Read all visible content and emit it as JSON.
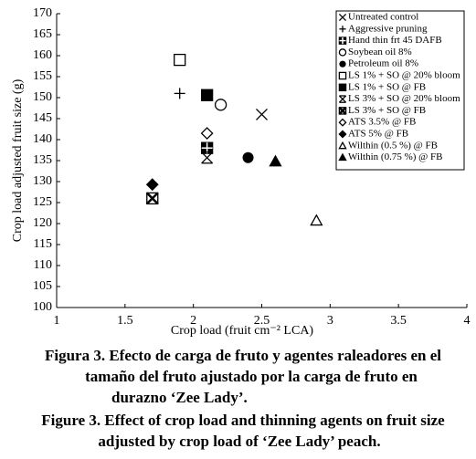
{
  "chart_data": {
    "type": "scatter",
    "xlabel": "Crop load (fruit cm⁻² LCA)",
    "ylabel": "Crop load adjusted fruit size (g)",
    "xlim": [
      1,
      4
    ],
    "xticks": [
      1,
      1.5,
      2,
      2.5,
      3,
      3.5,
      4
    ],
    "ylim": [
      100,
      170
    ],
    "yticks": [
      100,
      105,
      110,
      115,
      120,
      125,
      130,
      135,
      140,
      145,
      150,
      155,
      160,
      165,
      170
    ],
    "grid": false,
    "legend": "upper right",
    "color": "#000000",
    "series": [
      {
        "name": "Untreated control",
        "marker": "x",
        "x": [
          2.5
        ],
        "values": [
          146
        ]
      },
      {
        "name": "Aggressive pruning",
        "marker": "plus",
        "x": [
          1.9
        ],
        "values": [
          151
        ]
      },
      {
        "name": "Hand thin frt 45 DAFB",
        "marker": "square-plus",
        "x": [
          2.1
        ],
        "values": [
          138
        ]
      },
      {
        "name": "Soybean oil 8%",
        "marker": "circle-open",
        "x": [
          2.2
        ],
        "values": [
          148.3
        ]
      },
      {
        "name": "Petroleum oil 8%",
        "marker": "circle",
        "x": [
          2.4
        ],
        "values": [
          135.7
        ]
      },
      {
        "name": "LS 1% + SO @ 20% bloom",
        "marker": "square-open",
        "x": [
          1.9
        ],
        "values": [
          159
        ]
      },
      {
        "name": "LS 1% + SO @ FB",
        "marker": "square",
        "x": [
          2.1
        ],
        "values": [
          150.6
        ]
      },
      {
        "name": "LS 3% + SO @ 20% bloom",
        "marker": "x-bar",
        "x": [
          2.1
        ],
        "values": [
          135.7
        ]
      },
      {
        "name": "LS 3% + SO @ FB",
        "marker": "square-x",
        "x": [
          1.7
        ],
        "values": [
          126
        ]
      },
      {
        "name": "ATS 3.5% @ FB",
        "marker": "diamond-open",
        "x": [
          2.1
        ],
        "values": [
          141.5
        ]
      },
      {
        "name": "ATS 5% @ FB",
        "marker": "diamond",
        "x": [
          1.7
        ],
        "values": [
          129.3
        ]
      },
      {
        "name": "Wilthin (0.5 %) @ FB",
        "marker": "triangle-open",
        "x": [
          2.9
        ],
        "values": [
          120.7
        ]
      },
      {
        "name": "Wilthin (0.75 %) @ FB",
        "marker": "triangle",
        "x": [
          2.6
        ],
        "values": [
          134.8
        ]
      }
    ]
  },
  "figure_captions": {
    "es": [
      "Figura 3. Efecto de carga de fruto y agentes raleadores en el",
      "tamaño del fruto ajustado por la carga de fruto en",
      "durazno ‘Zee Lady’."
    ],
    "en": [
      "Figure 3. Effect of crop load and thinning agents on fruit size",
      "adjusted by crop load of ‘Zee Lady’ peach."
    ]
  }
}
